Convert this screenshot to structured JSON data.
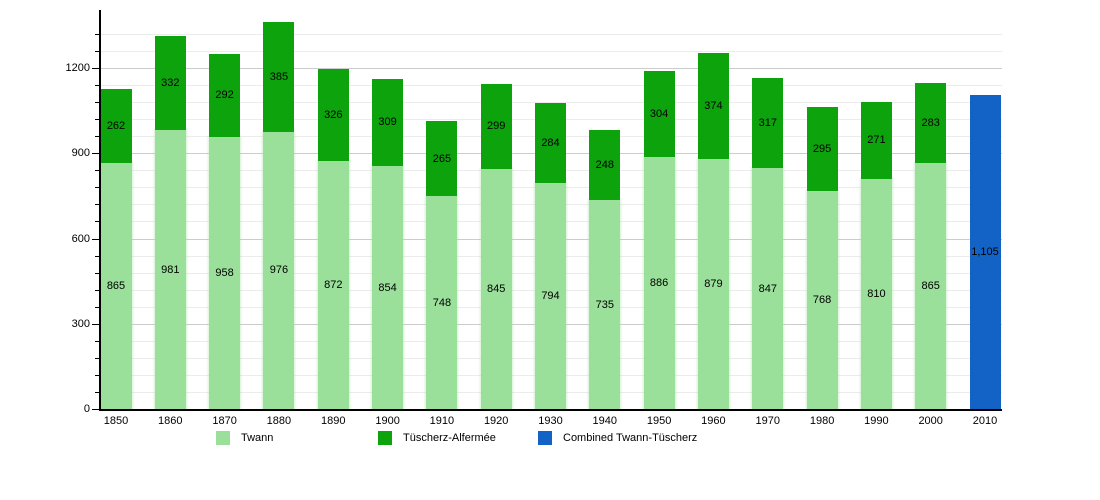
{
  "chart_data": {
    "type": "bar",
    "stacked": true,
    "title": "",
    "xlabel": "",
    "ylabel": "",
    "grid": true,
    "legend_position": "bottom",
    "categories": [
      "1850",
      "1860",
      "1870",
      "1880",
      "1890",
      "1900",
      "1910",
      "1920",
      "1930",
      "1940",
      "1950",
      "1960",
      "1970",
      "1980",
      "1990",
      "2000",
      "2010"
    ],
    "series": [
      {
        "name": "Twann",
        "color": "#9ADF9A",
        "values": [
          865,
          981,
          958,
          976,
          872,
          854,
          748,
          845,
          794,
          735,
          886,
          879,
          847,
          768,
          810,
          865,
          null
        ]
      },
      {
        "name": "Tüscherz-Alfermée",
        "color": "#0DA30D",
        "values": [
          262,
          332,
          292,
          385,
          326,
          309,
          265,
          299,
          284,
          248,
          304,
          374,
          317,
          295,
          271,
          283,
          null
        ]
      },
      {
        "name": "Combined Twann-Tüscherz",
        "color": "#1363C6",
        "values": [
          null,
          null,
          null,
          null,
          null,
          null,
          null,
          null,
          null,
          null,
          null,
          null,
          null,
          null,
          null,
          null,
          1105
        ]
      }
    ],
    "y_axis": {
      "tick_labels": [
        "0",
        "300",
        "600",
        "900",
        "1200"
      ],
      "tick_values": [
        0,
        300,
        600,
        900,
        1200
      ],
      "minor_step": 60,
      "min": 0,
      "max": 1404
    }
  }
}
